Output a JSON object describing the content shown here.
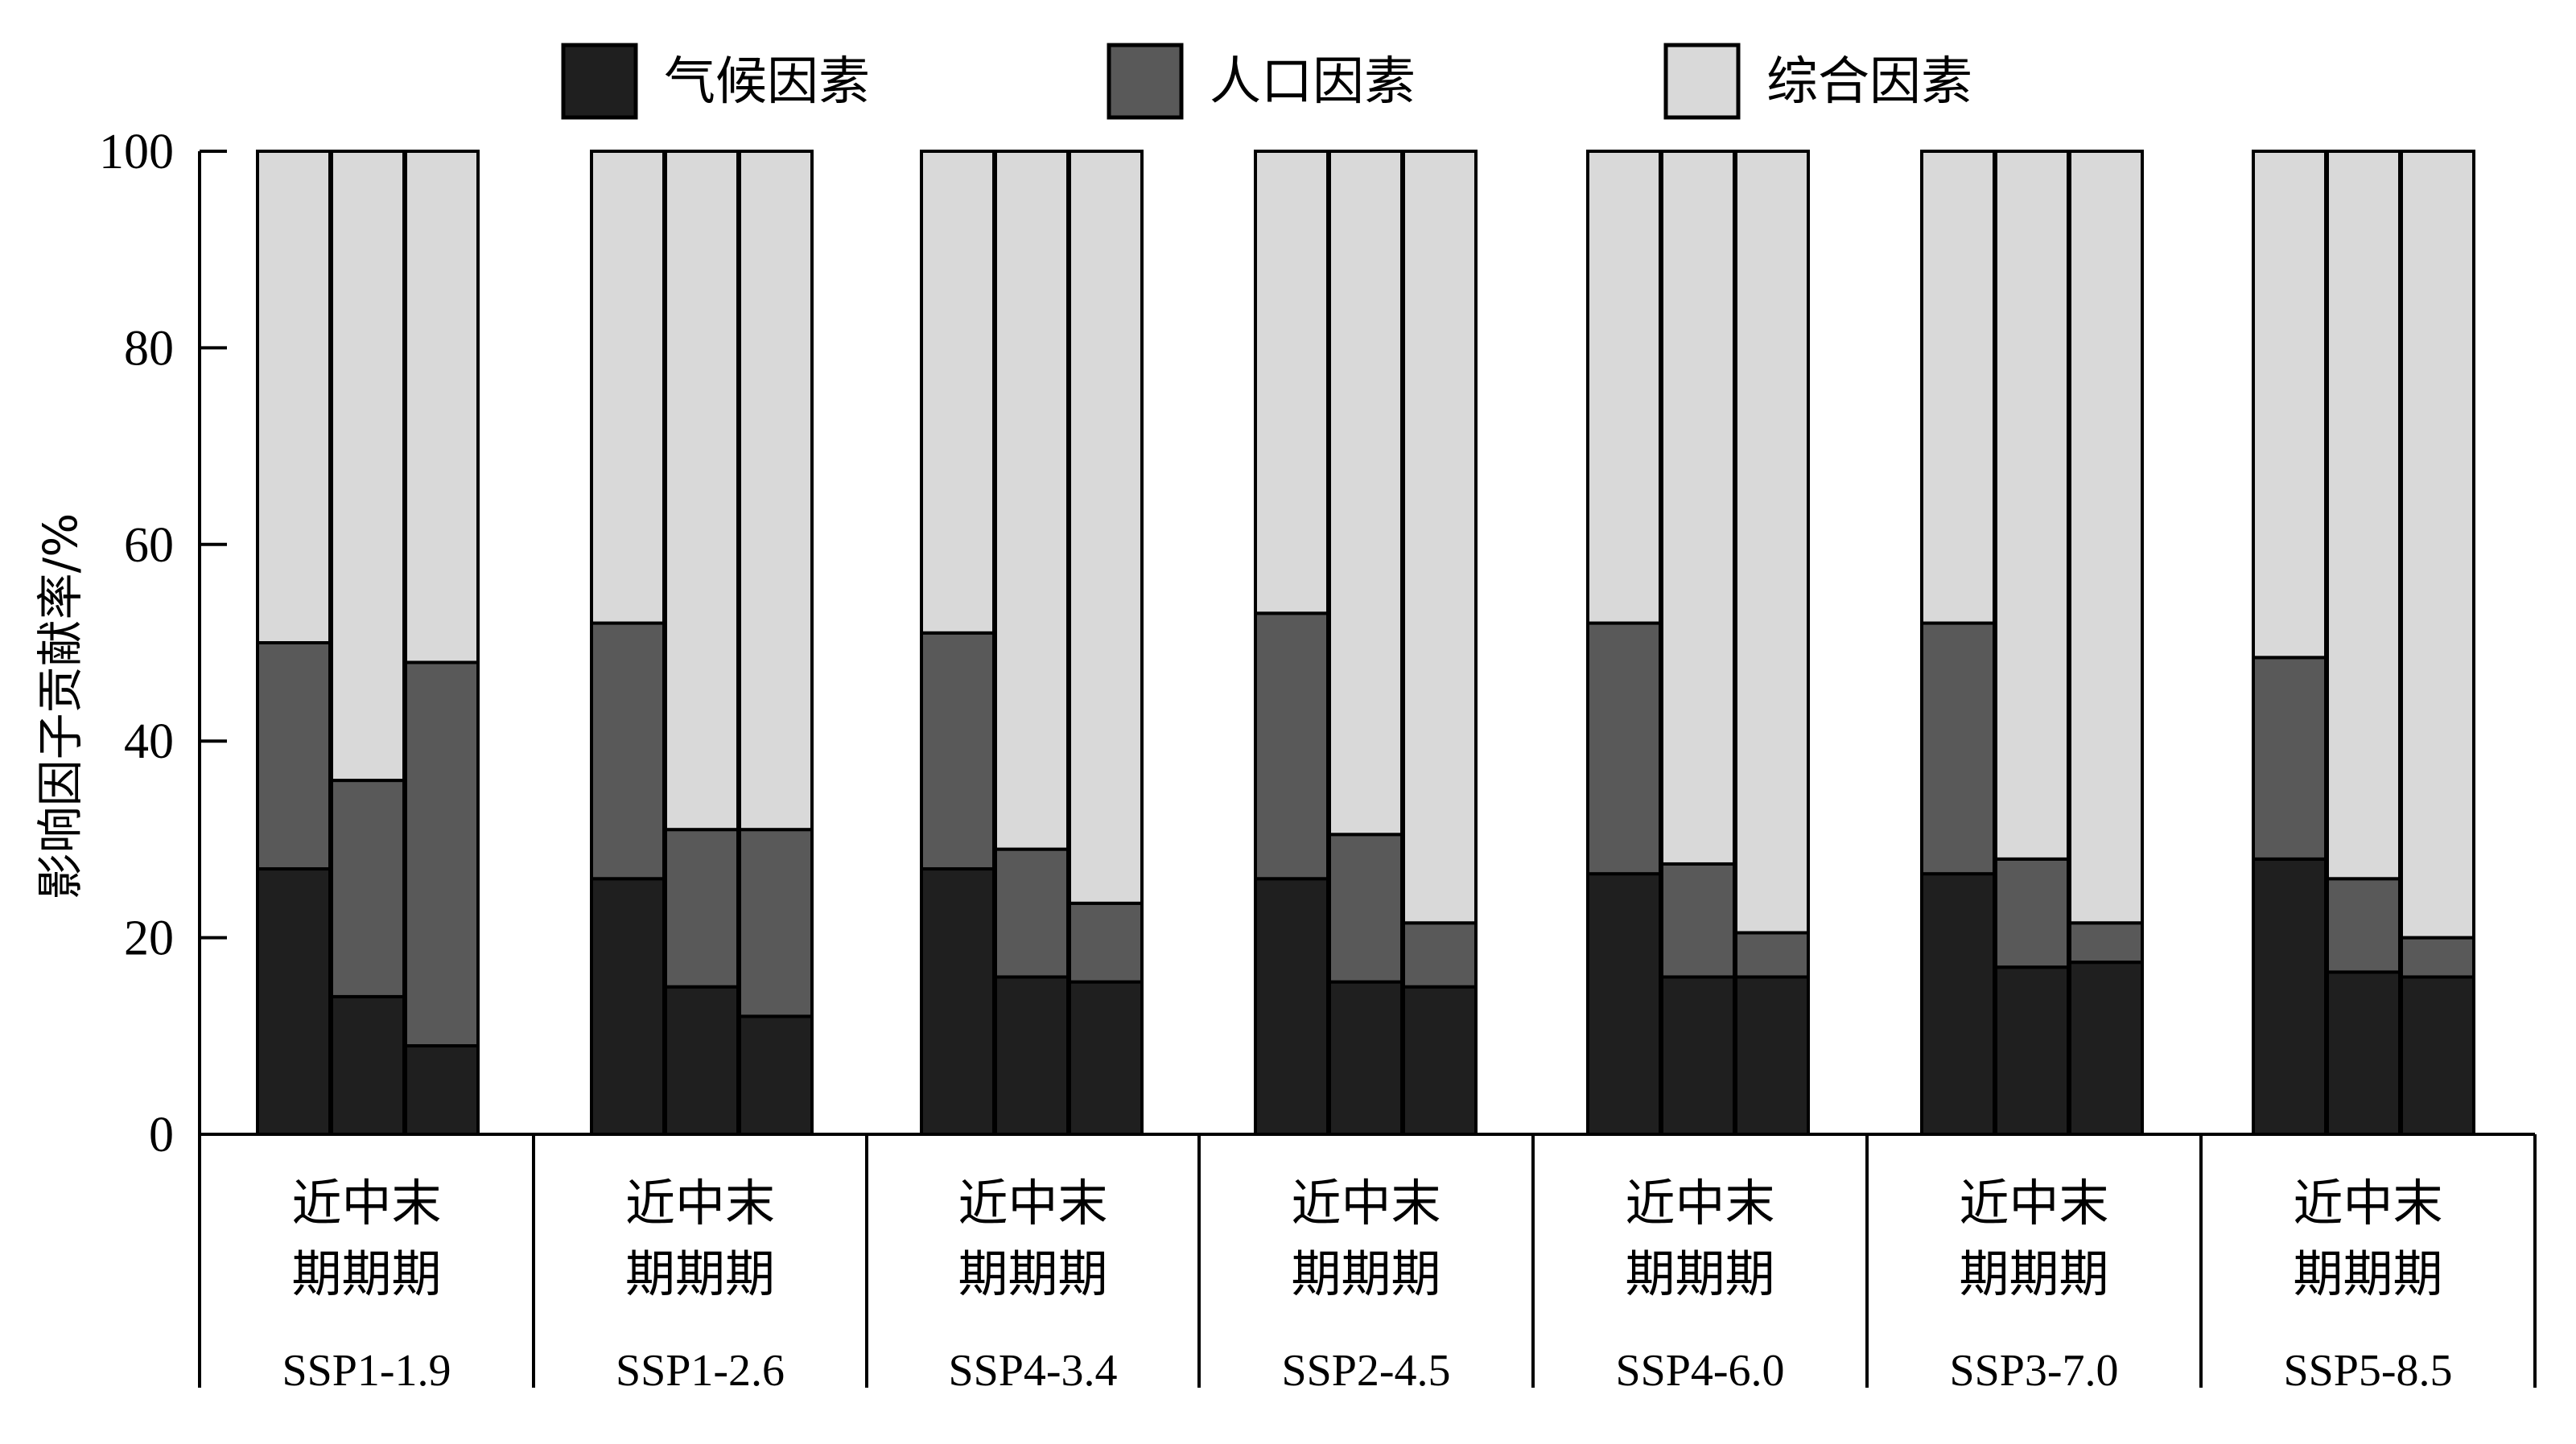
{
  "chart_data": {
    "type": "bar",
    "stacked": true,
    "ylabel": "影响因子贡献率/%",
    "ylim": [
      0,
      100
    ],
    "yticks": [
      0,
      20,
      40,
      60,
      80,
      100
    ],
    "legend_position": "top",
    "series": [
      {
        "name": "气候因素",
        "color": "#1f1f1f"
      },
      {
        "name": "人口因素",
        "color": "#595959"
      },
      {
        "name": "综合因素",
        "color": "#d9d9d9"
      }
    ],
    "period_labels": "近中末\n期期期",
    "groups": [
      {
        "scenario": "SSP1-1.9",
        "bars": [
          {
            "climate": 27,
            "population": 23,
            "combined": 50
          },
          {
            "climate": 14,
            "population": 22,
            "combined": 64
          },
          {
            "climate": 9,
            "population": 39,
            "combined": 52
          }
        ]
      },
      {
        "scenario": "SSP1-2.6",
        "bars": [
          {
            "climate": 26,
            "population": 26,
            "combined": 48
          },
          {
            "climate": 15,
            "population": 16,
            "combined": 69
          },
          {
            "climate": 12,
            "population": 19,
            "combined": 69
          }
        ]
      },
      {
        "scenario": "SSP4-3.4",
        "bars": [
          {
            "climate": 27,
            "population": 24,
            "combined": 49
          },
          {
            "climate": 16,
            "population": 13,
            "combined": 71
          },
          {
            "climate": 15.5,
            "population": 8,
            "combined": 76.5
          }
        ]
      },
      {
        "scenario": "SSP2-4.5",
        "bars": [
          {
            "climate": 26,
            "population": 27,
            "combined": 47
          },
          {
            "climate": 15.5,
            "population": 15,
            "combined": 69.5
          },
          {
            "climate": 15,
            "population": 6.5,
            "combined": 78.5
          }
        ]
      },
      {
        "scenario": "SSP4-6.0",
        "bars": [
          {
            "climate": 26.5,
            "population": 25.5,
            "combined": 48
          },
          {
            "climate": 16,
            "population": 11.5,
            "combined": 72.5
          },
          {
            "climate": 16,
            "population": 4.5,
            "combined": 79.5
          }
        ]
      },
      {
        "scenario": "SSP3-7.0",
        "bars": [
          {
            "climate": 26.5,
            "population": 25.5,
            "combined": 48
          },
          {
            "climate": 17,
            "population": 11,
            "combined": 72
          },
          {
            "climate": 17.5,
            "population": 4,
            "combined": 78.5
          }
        ]
      },
      {
        "scenario": "SSP5-8.5",
        "bars": [
          {
            "climate": 28,
            "population": 20.5,
            "combined": 51.5
          },
          {
            "climate": 16.5,
            "population": 9.5,
            "combined": 74
          },
          {
            "climate": 16,
            "population": 4,
            "combined": 80
          }
        ]
      }
    ]
  }
}
